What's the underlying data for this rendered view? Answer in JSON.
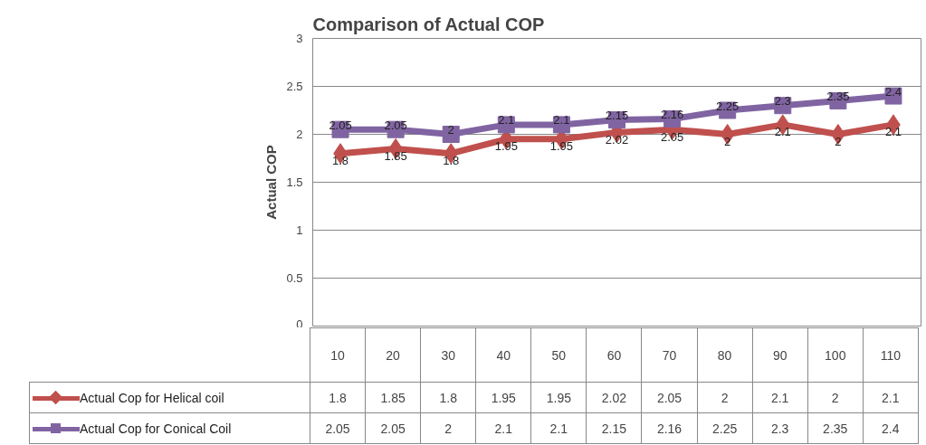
{
  "chart_data": {
    "type": "line",
    "title": "Comparison of Actual COP",
    "ylabel": "Actual COP",
    "categories": [
      "10",
      "20",
      "30",
      "40",
      "50",
      "60",
      "70",
      "80",
      "90",
      "100",
      "110"
    ],
    "series": [
      {
        "name": "Actual Cop for Helical coil",
        "color": "#c0504d",
        "marker": "diamond",
        "values": [
          1.8,
          1.85,
          1.8,
          1.95,
          1.95,
          2.02,
          2.05,
          2,
          2.1,
          2,
          2.1
        ]
      },
      {
        "name": "Actual Cop for Conical Coil",
        "color": "#8064a2",
        "marker": "square",
        "values": [
          2.05,
          2.05,
          2,
          2.1,
          2.1,
          2.15,
          2.16,
          2.25,
          2.3,
          2.35,
          2.4
        ]
      }
    ],
    "annotations": [
      {
        "text": "1.8",
        "x": "10",
        "y": 1.8
      },
      {
        "text": "1.85",
        "x": "20",
        "y": 1.85
      },
      {
        "text": "1.8",
        "x": "30",
        "y": 1.8
      },
      {
        "text": "1.95",
        "x": "40",
        "y": 1.95
      },
      {
        "text": "1.95",
        "x": "50",
        "y": 1.95
      },
      {
        "text": "2.02",
        "x": "60",
        "y": 2.02
      },
      {
        "text": "2.05",
        "x": "70",
        "y": 2.05
      },
      {
        "text": "2",
        "x": "80",
        "y": 2
      },
      {
        "text": "2.1",
        "x": "90",
        "y": 2.1
      },
      {
        "text": "2",
        "x": "100",
        "y": 2
      },
      {
        "text": "2.1",
        "x": "110",
        "y": 2.1
      },
      {
        "text": "2.05",
        "x": "10",
        "y": 2.05
      },
      {
        "text": "2.05",
        "x": "20",
        "y": 2.05
      },
      {
        "text": "2",
        "x": "30",
        "y": 2
      },
      {
        "text": "2.1",
        "x": "40",
        "y": 2.1
      },
      {
        "text": "2.1",
        "x": "50",
        "y": 2.1
      },
      {
        "text": "2.15",
        "x": "60",
        "y": 2.15
      },
      {
        "text": "2.16",
        "x": "70",
        "y": 2.16
      },
      {
        "text": "2.25",
        "x": "80",
        "y": 2.25
      },
      {
        "text": "2.3",
        "x": "90",
        "y": 2.3
      },
      {
        "text": "2.35",
        "x": "100",
        "y": 2.35
      },
      {
        "text": "2.4",
        "x": "110",
        "y": 2.4
      }
    ],
    "ylim": [
      0,
      3
    ],
    "yticks": [
      0,
      0.5,
      1,
      1.5,
      2,
      2.5,
      3
    ],
    "grid": "y",
    "legend": "bottom",
    "data_labels": true
  }
}
